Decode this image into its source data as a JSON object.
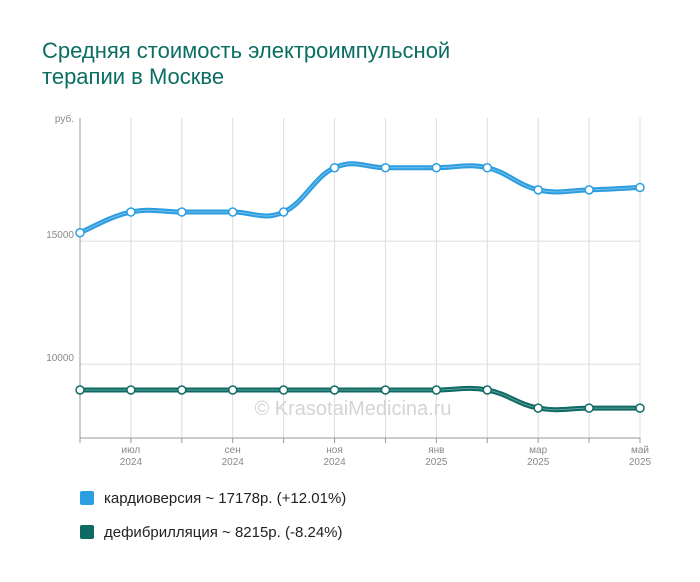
{
  "chart_data": {
    "type": "line",
    "title_lines": [
      "Средняя стоимость электроимпульсной",
      "терапии в Москве"
    ],
    "y_unit": "руб.",
    "ylim": [
      7000,
      20000
    ],
    "y_ticks": [
      {
        "value": 10000,
        "label": "10000"
      },
      {
        "value": 15000,
        "label": "15000"
      }
    ],
    "x": [
      0,
      1,
      2,
      3,
      4,
      5,
      6,
      7,
      8,
      9,
      10,
      11
    ],
    "x_ticks": [
      {
        "index": 1,
        "month": "июл",
        "year": "2024"
      },
      {
        "index": 3,
        "month": "сен",
        "year": "2024"
      },
      {
        "index": 5,
        "month": "ноя",
        "year": "2024"
      },
      {
        "index": 7,
        "month": "янв",
        "year": "2025"
      },
      {
        "index": 9,
        "month": "мар",
        "year": "2025"
      },
      {
        "index": 11,
        "month": "май",
        "year": "2025"
      }
    ],
    "grid": true,
    "series": [
      {
        "name": "кардиоверсия",
        "legend": "кардиоверсия ~ 17178р. (+12.01%)",
        "color": "#2c9de0",
        "values": [
          15340,
          16180,
          16180,
          16180,
          16180,
          17980,
          17980,
          17980,
          17980,
          17080,
          17080,
          17178
        ]
      },
      {
        "name": "дефибрилляция",
        "legend": "дефибрилляция ~ 8215р. (-8.24%)",
        "color": "#0e6b64",
        "values": [
          8950,
          8950,
          8950,
          8950,
          8950,
          8950,
          8950,
          8950,
          8950,
          8215,
          8215,
          8215
        ]
      }
    ]
  },
  "watermark": "© KrasotaiMedicina.ru"
}
